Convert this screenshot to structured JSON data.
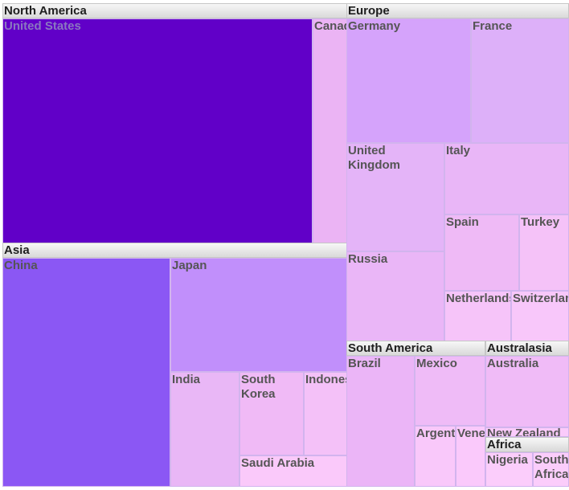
{
  "chart_data": {
    "type": "treemap",
    "groups": [
      {
        "name": "North America",
        "items": [
          {
            "name": "United States",
            "value": 75,
            "color": "#6100c8"
          },
          {
            "name": "Canada",
            "value": 5,
            "color": "#ebb4f4"
          }
        ]
      },
      {
        "name": "Europe",
        "items": [
          {
            "name": "Germany",
            "value": 15,
            "color": "#d5a3fb"
          },
          {
            "name": "France",
            "value": 12,
            "color": "#ddb0f9"
          },
          {
            "name": "United Kingdom",
            "value": 11,
            "color": "#e4b4f8"
          },
          {
            "name": "Italy",
            "value": 9,
            "color": "#e9b6f7"
          },
          {
            "name": "Russia",
            "value": 9,
            "color": "#eab6f7"
          },
          {
            "name": "Spain",
            "value": 6,
            "color": "#efbaf6"
          },
          {
            "name": "Turkey",
            "value": 3.5,
            "color": "#f5c2f8"
          },
          {
            "name": "Netherlands",
            "value": 3.5,
            "color": "#f6c4f9"
          },
          {
            "name": "Switzerland",
            "value": 2.5,
            "color": "#f8c7fa"
          }
        ]
      },
      {
        "name": "Asia",
        "items": [
          {
            "name": "China",
            "value": 57,
            "color": "#8b57f4"
          },
          {
            "name": "Japan",
            "value": 28,
            "color": "#c18ffb"
          },
          {
            "name": "India",
            "value": 9.5,
            "color": "#e9b7f6"
          },
          {
            "name": "South Korea",
            "value": 8,
            "color": "#f0baf6"
          },
          {
            "name": "Indonesia",
            "value": 5.5,
            "color": "#f4c1f8"
          },
          {
            "name": "Saudi Arabia",
            "value": 4.5,
            "color": "#fac9fa"
          }
        ]
      },
      {
        "name": "South America",
        "items": [
          {
            "name": "Brazil",
            "value": 12,
            "color": "#ebb5f7"
          },
          {
            "name": "Mexico",
            "value": 7,
            "color": "#efbbf7"
          },
          {
            "name": "Argentina",
            "value": 3,
            "color": "#f9c8fa"
          },
          {
            "name": "Venezuela",
            "value": 2.5,
            "color": "#fac9fb"
          }
        ]
      },
      {
        "name": "Australasia",
        "items": [
          {
            "name": "Australia",
            "value": 8,
            "color": "#f0bbf7"
          },
          {
            "name": "New Zealand",
            "value": 1,
            "color": "#fbcbfb"
          }
        ]
      },
      {
        "name": "Africa",
        "items": [
          {
            "name": "Nigeria",
            "value": 2,
            "color": "#fbcdfb"
          },
          {
            "name": "South Africa",
            "value": 2,
            "color": "#fbcdfb"
          }
        ]
      }
    ]
  }
}
